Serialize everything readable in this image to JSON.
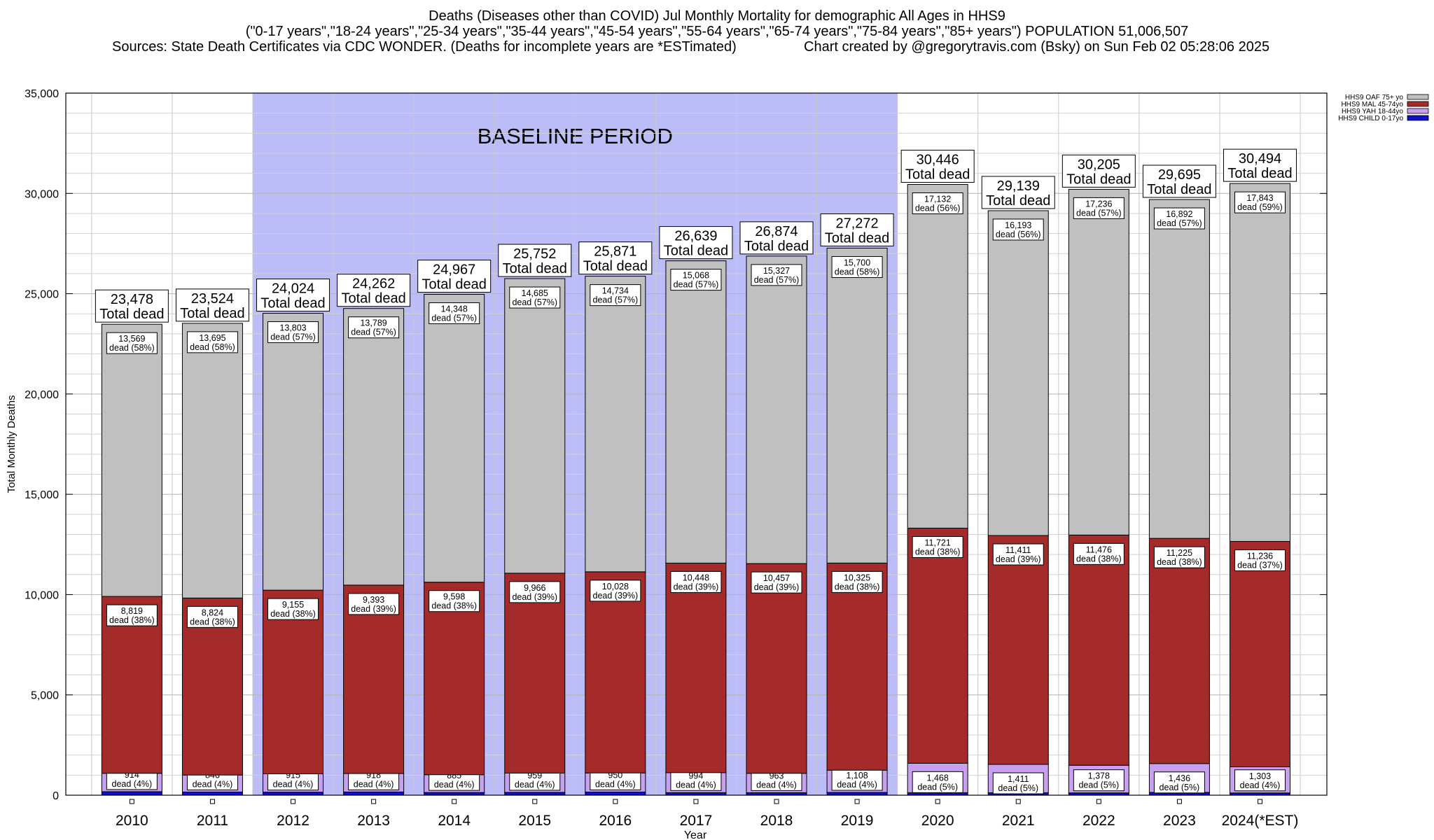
{
  "header": {
    "line1": "Deaths (Diseases other than COVID) Jul Monthly Mortality for demographic All Ages in HHS9",
    "line2": "(\"0-17 years\",\"18-24 years\",\"25-34 years\",\"35-44 years\",\"45-54 years\",\"55-64 years\",\"65-74 years\",\"75-84 years\",\"85+ years\") POPULATION 51,006,507",
    "line3_left": "Sources: State Death Certificates via CDC WONDER. (Deaths for incomplete years are *ESTimated)",
    "line3_right": "Chart created by @gregorytravis.com (Bsky) on Sun Feb 02 05:28:06 2025"
  },
  "chart_data": {
    "type": "bar",
    "stacked": true,
    "xlabel": "Year",
    "ylabel": "Total Monthly Deaths",
    "ylim": [
      0,
      35000
    ],
    "yticks": [
      0,
      5000,
      10000,
      15000,
      20000,
      25000,
      30000,
      35000
    ],
    "ytick_labels": [
      "0",
      "5,000",
      "10,000",
      "15,000",
      "20,000",
      "25,000",
      "30,000",
      "35,000"
    ],
    "grid": true,
    "legend_position": "top-right",
    "categories": [
      "2010",
      "2011",
      "2012",
      "2013",
      "2014",
      "2015",
      "2016",
      "2017",
      "2018",
      "2019",
      "2020",
      "2021",
      "2022",
      "2023",
      "2024(*EST)"
    ],
    "baseline": {
      "label": "BASELINE PERIOD",
      "start": "2012",
      "end": "2019",
      "color": "#bcbcf8"
    },
    "total_suffix": "Total dead",
    "totals": [
      23478,
      23524,
      24024,
      24262,
      24967,
      25752,
      25871,
      26639,
      26874,
      27272,
      30446,
      29139,
      30205,
      29695,
      30494
    ],
    "total_labels": [
      "23,478",
      "23,524",
      "24,024",
      "24,262",
      "24,967",
      "25,752",
      "25,871",
      "26,639",
      "26,874",
      "27,272",
      "30,446",
      "29,139",
      "30,205",
      "29,695",
      "30,494"
    ],
    "series": [
      {
        "name": "HHS9 CHILD 0-17yo",
        "color": "#1010c8",
        "values": [
          176,
          159,
          151,
          162,
          136,
          142,
          159,
          129,
          127,
          139,
          125,
          124,
          115,
          142,
          112
        ]
      },
      {
        "name": "HHS9 YAH 18-44yo",
        "color": "#c8a0f0",
        "values": [
          914,
          846,
          915,
          918,
          885,
          959,
          950,
          994,
          963,
          1108,
          1468,
          1411,
          1378,
          1436,
          1303
        ],
        "labels": [
          "914",
          "846",
          "915",
          "918",
          "885",
          "959",
          "950",
          "994",
          "963",
          "1,108",
          "1,468",
          "1,411",
          "1,378",
          "1,436",
          "1,303"
        ],
        "percents": [
          "dead (4%)",
          "dead (4%)",
          "dead (4%)",
          "dead (4%)",
          "dead (4%)",
          "dead (4%)",
          "dead (4%)",
          "dead (4%)",
          "dead (4%)",
          "dead (4%)",
          "dead (5%)",
          "dead (5%)",
          "dead (5%)",
          "dead (5%)",
          "dead (4%)"
        ]
      },
      {
        "name": "HHS9 MAL 45-74yo",
        "color": "#a52a2a",
        "values": [
          8819,
          8824,
          9155,
          9393,
          9598,
          9966,
          10028,
          10448,
          10457,
          10325,
          11721,
          11411,
          11476,
          11225,
          11236
        ],
        "labels": [
          "8,819",
          "8,824",
          "9,155",
          "9,393",
          "9,598",
          "9,966",
          "10,028",
          "10,448",
          "10,457",
          "10,325",
          "11,721",
          "11,411",
          "11,476",
          "11,225",
          "11,236"
        ],
        "percents": [
          "dead (38%)",
          "dead (38%)",
          "dead (38%)",
          "dead (39%)",
          "dead (38%)",
          "dead (39%)",
          "dead (39%)",
          "dead (39%)",
          "dead (39%)",
          "dead (38%)",
          "dead (38%)",
          "dead (39%)",
          "dead (38%)",
          "dead (38%)",
          "dead (37%)"
        ]
      },
      {
        "name": "HHS9 OAF 75+ yo",
        "color": "#c0c0c0",
        "values": [
          13569,
          13695,
          13803,
          13789,
          14348,
          14685,
          14734,
          15068,
          15327,
          15700,
          17132,
          16193,
          17236,
          16892,
          17843
        ],
        "labels": [
          "13,569",
          "13,695",
          "13,803",
          "13,789",
          "14,348",
          "14,685",
          "14,734",
          "15,068",
          "15,327",
          "15,700",
          "17,132",
          "16,193",
          "17,236",
          "16,892",
          "17,843"
        ],
        "percents": [
          "dead (58%)",
          "dead (58%)",
          "dead (57%)",
          "dead (57%)",
          "dead (57%)",
          "dead (57%)",
          "dead (57%)",
          "dead (57%)",
          "dead (57%)",
          "dead (58%)",
          "dead (56%)",
          "dead (56%)",
          "dead (57%)",
          "dead (57%)",
          "dead (59%)"
        ]
      }
    ],
    "legend_order": [
      "HHS9 OAF 75+ yo",
      "HHS9 MAL 45-74yo",
      "HHS9 YAH 18-44yo",
      "HHS9 CHILD 0-17yo"
    ]
  }
}
